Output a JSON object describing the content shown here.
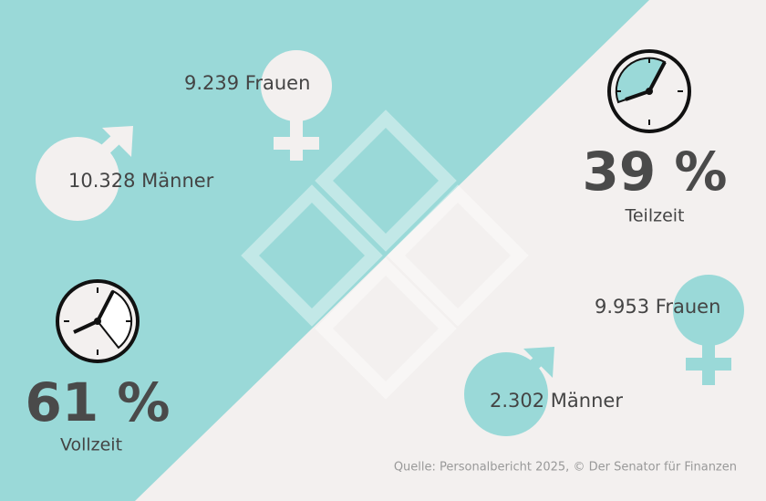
{
  "vollzeit": {
    "percent": "61 %",
    "label": "Vollzeit",
    "women": "9.239 Frauen",
    "men": "10.328 Männer"
  },
  "teilzeit": {
    "percent": "39 %",
    "label": "Teilzeit",
    "women": "9.953 Frauen",
    "men": "2.302 Männer"
  },
  "source": "Quelle: Personalbericht 2025, © Der Senator für Finanzen"
}
